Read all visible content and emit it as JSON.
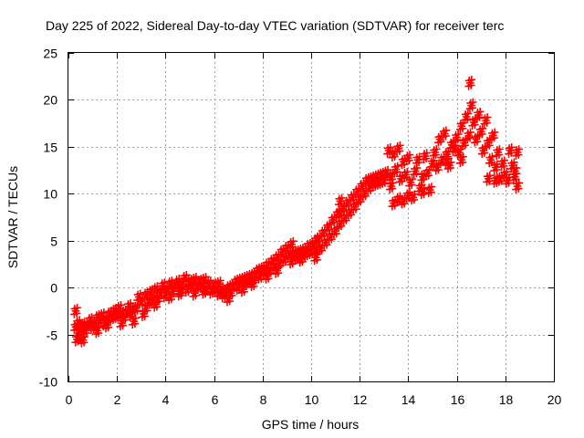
{
  "chart_data": {
    "type": "scatter",
    "title": "Day 225 of 2022, Sidereal Day-to-day VTEC variation (SDTVAR) for receiver terc",
    "xlabel": "GPS time / hours",
    "ylabel": "SDTVAR / TECUs",
    "xlim": [
      0,
      20
    ],
    "ylim": [
      -10,
      25
    ],
    "xticks": [
      0,
      2,
      4,
      6,
      8,
      10,
      12,
      14,
      16,
      18,
      20
    ],
    "yticks": [
      -10,
      -5,
      0,
      5,
      10,
      15,
      20,
      25
    ],
    "x_tick_labels": [
      "0",
      "2",
      "4",
      "6",
      "8",
      "10",
      "12",
      "14",
      "16",
      "18",
      "20"
    ],
    "y_tick_labels": [
      "-10",
      "-5",
      "0",
      "5",
      "10",
      "15",
      "20",
      "25"
    ],
    "grid": true,
    "marker": "plus",
    "color": "#ff0000",
    "series": [
      {
        "name": "SDTVAR",
        "points": [
          [
            0.3,
            -2.5
          ],
          [
            0.3,
            -4.2
          ],
          [
            0.35,
            -5.5
          ],
          [
            0.4,
            -3.8
          ],
          [
            0.45,
            -4.8
          ],
          [
            0.5,
            -5.2
          ],
          [
            0.55,
            -4.5
          ],
          [
            0.6,
            -4.0
          ],
          [
            0.7,
            -4.6
          ],
          [
            0.8,
            -4.0
          ],
          [
            0.9,
            -3.5
          ],
          [
            1.0,
            -4.2
          ],
          [
            1.1,
            -3.8
          ],
          [
            1.2,
            -3.2
          ],
          [
            1.3,
            -3.5
          ],
          [
            1.4,
            -3.0
          ],
          [
            1.5,
            -3.8
          ],
          [
            1.6,
            -3.4
          ],
          [
            1.7,
            -2.8
          ],
          [
            1.8,
            -3.2
          ],
          [
            1.9,
            -2.5
          ],
          [
            2.0,
            -3.0
          ],
          [
            2.1,
            -2.2
          ],
          [
            2.2,
            -2.8
          ],
          [
            2.3,
            -3.2
          ],
          [
            2.4,
            -2.6
          ],
          [
            2.5,
            -2.0
          ],
          [
            2.6,
            -2.8
          ],
          [
            2.7,
            -3.6
          ],
          [
            2.8,
            -2.2
          ],
          [
            2.9,
            -1.0
          ],
          [
            3.0,
            -1.5
          ],
          [
            3.1,
            -2.8
          ],
          [
            3.2,
            -0.8
          ],
          [
            3.3,
            -1.6
          ],
          [
            3.4,
            -0.5
          ],
          [
            3.5,
            -1.4
          ],
          [
            3.6,
            -0.2
          ],
          [
            3.7,
            -1.2
          ],
          [
            3.8,
            -0.6
          ],
          [
            3.9,
            0.2
          ],
          [
            4.0,
            -0.8
          ],
          [
            4.1,
            -0.2
          ],
          [
            4.2,
            0.4
          ],
          [
            4.3,
            -0.4
          ],
          [
            4.4,
            0.2
          ],
          [
            4.5,
            0.6
          ],
          [
            4.6,
            -0.6
          ],
          [
            4.7,
            0.4
          ],
          [
            4.8,
            1.0
          ],
          [
            4.9,
            -0.2
          ],
          [
            5.0,
            0.6
          ],
          [
            5.1,
            0.2
          ],
          [
            5.2,
            0.8
          ],
          [
            5.3,
            0.0
          ],
          [
            5.4,
            0.6
          ],
          [
            5.5,
            0.2
          ],
          [
            5.6,
            0.8
          ],
          [
            5.7,
            -0.2
          ],
          [
            5.8,
            0.4
          ],
          [
            5.9,
            -0.4
          ],
          [
            6.0,
            0.2
          ],
          [
            6.1,
            -0.2
          ],
          [
            6.2,
            -0.6
          ],
          [
            6.3,
            -0.2
          ],
          [
            6.4,
            -0.8
          ],
          [
            6.5,
            -0.4
          ],
          [
            6.6,
            0.0
          ],
          [
            6.7,
            -0.6
          ],
          [
            6.8,
            0.2
          ],
          [
            6.9,
            0.6
          ],
          [
            7.0,
            0.0
          ],
          [
            7.1,
            0.8
          ],
          [
            7.2,
            0.4
          ],
          [
            7.3,
            1.0
          ],
          [
            7.4,
            0.6
          ],
          [
            7.5,
            1.2
          ],
          [
            7.6,
            0.8
          ],
          [
            7.7,
            1.4
          ],
          [
            7.8,
            1.8
          ],
          [
            7.9,
            1.2
          ],
          [
            8.0,
            2.0
          ],
          [
            8.1,
            1.6
          ],
          [
            8.2,
            2.4
          ],
          [
            8.3,
            1.8
          ],
          [
            8.4,
            2.8
          ],
          [
            8.5,
            2.2
          ],
          [
            8.6,
            3.2
          ],
          [
            8.7,
            2.6
          ],
          [
            8.8,
            3.8
          ],
          [
            8.9,
            3.0
          ],
          [
            9.0,
            4.2
          ],
          [
            9.1,
            3.4
          ],
          [
            9.2,
            4.6
          ],
          [
            9.3,
            3.6
          ],
          [
            9.4,
            3.2
          ],
          [
            9.5,
            3.8
          ],
          [
            9.6,
            3.4
          ],
          [
            9.7,
            4.0
          ],
          [
            9.8,
            3.6
          ],
          [
            9.9,
            4.4
          ],
          [
            10.0,
            3.8
          ],
          [
            10.1,
            4.6
          ],
          [
            10.2,
            4.0
          ],
          [
            10.3,
            5.2
          ],
          [
            10.4,
            4.2
          ],
          [
            10.5,
            5.8
          ],
          [
            10.6,
            4.8
          ],
          [
            10.7,
            6.4
          ],
          [
            10.8,
            5.4
          ],
          [
            10.9,
            7.2
          ],
          [
            11.0,
            6.0
          ],
          [
            11.1,
            7.8
          ],
          [
            11.2,
            6.8
          ],
          [
            11.3,
            8.4
          ],
          [
            11.4,
            7.4
          ],
          [
            11.5,
            9.0
          ],
          [
            11.6,
            8.0
          ],
          [
            11.7,
            9.6
          ],
          [
            11.8,
            8.6
          ],
          [
            11.9,
            10.2
          ],
          [
            12.0,
            9.4
          ],
          [
            12.1,
            10.8
          ],
          [
            12.2,
            10.0
          ],
          [
            12.3,
            11.4
          ],
          [
            12.4,
            10.6
          ],
          [
            12.5,
            11.6
          ],
          [
            12.6,
            11.0
          ],
          [
            12.7,
            11.8
          ],
          [
            12.8,
            11.2
          ],
          [
            12.9,
            12.0
          ],
          [
            13.0,
            11.4
          ],
          [
            13.1,
            12.2
          ],
          [
            13.2,
            14.6
          ],
          [
            13.3,
            11.8
          ],
          [
            13.4,
            14.2
          ],
          [
            13.5,
            12.6
          ],
          [
            13.6,
            14.8
          ],
          [
            13.7,
            11.6
          ],
          [
            13.8,
            13.4
          ],
          [
            13.9,
            12.0
          ],
          [
            14.0,
            13.8
          ],
          [
            14.1,
            11.2
          ],
          [
            14.2,
            9.6
          ],
          [
            13.4,
            9.0
          ],
          [
            13.6,
            9.4
          ],
          [
            13.8,
            9.2
          ],
          [
            14.0,
            9.8
          ],
          [
            14.3,
            12.4
          ],
          [
            14.4,
            13.6
          ],
          [
            14.5,
            10.6
          ],
          [
            14.6,
            11.8
          ],
          [
            14.7,
            14.0
          ],
          [
            14.8,
            12.2
          ],
          [
            14.9,
            10.4
          ],
          [
            15.0,
            13.2
          ],
          [
            15.1,
            14.4
          ],
          [
            15.2,
            12.8
          ],
          [
            15.3,
            15.8
          ],
          [
            15.4,
            13.6
          ],
          [
            15.5,
            16.4
          ],
          [
            15.6,
            14.2
          ],
          [
            15.7,
            13.0
          ],
          [
            15.8,
            15.2
          ],
          [
            15.9,
            14.8
          ],
          [
            16.0,
            16.0
          ],
          [
            16.1,
            14.4
          ],
          [
            16.2,
            17.2
          ],
          [
            16.3,
            15.4
          ],
          [
            16.4,
            18.2
          ],
          [
            16.5,
            16.2
          ],
          [
            16.55,
            21.8
          ],
          [
            16.6,
            19.4
          ],
          [
            16.7,
            17.6
          ],
          [
            16.8,
            15.8
          ],
          [
            16.9,
            18.4
          ],
          [
            17.0,
            16.6
          ],
          [
            17.1,
            14.6
          ],
          [
            17.2,
            17.8
          ],
          [
            17.3,
            15.4
          ],
          [
            17.4,
            13.6
          ],
          [
            17.5,
            16.2
          ],
          [
            17.6,
            12.8
          ],
          [
            17.7,
            14.4
          ],
          [
            17.8,
            11.6
          ],
          [
            17.9,
            13.2
          ],
          [
            18.0,
            12.0
          ],
          [
            18.1,
            11.4
          ],
          [
            18.2,
            14.6
          ],
          [
            18.3,
            13.0
          ],
          [
            18.4,
            11.8
          ],
          [
            18.5,
            10.8
          ],
          [
            18.5,
            14.4
          ],
          [
            17.3,
            11.6
          ],
          [
            17.6,
            11.4
          ],
          [
            18.4,
            12.4
          ],
          [
            16.2,
            13.6
          ],
          [
            15.6,
            13.4
          ],
          [
            14.6,
            10.2
          ],
          [
            13.3,
            10.8
          ],
          [
            12.6,
            11.4
          ],
          [
            11.2,
            8.0
          ],
          [
            10.2,
            3.2
          ],
          [
            9.6,
            3.0
          ],
          [
            8.6,
            1.8
          ],
          [
            7.6,
            0.4
          ],
          [
            6.6,
            -1.2
          ],
          [
            5.6,
            -0.4
          ],
          [
            4.6,
            -0.4
          ],
          [
            3.6,
            -1.8
          ],
          [
            2.6,
            -2.4
          ],
          [
            1.6,
            -4.0
          ],
          [
            0.6,
            -5.6
          ],
          [
            1.2,
            -4.6
          ],
          [
            2.2,
            -3.8
          ],
          [
            3.2,
            -2.2
          ],
          [
            4.2,
            -1.0
          ],
          [
            5.2,
            -0.6
          ],
          [
            6.2,
            0.4
          ],
          [
            7.2,
            -0.2
          ],
          [
            8.2,
            1.2
          ],
          [
            9.2,
            2.8
          ],
          [
            10.2,
            5.0
          ],
          [
            11.2,
            9.2
          ]
        ]
      }
    ]
  }
}
